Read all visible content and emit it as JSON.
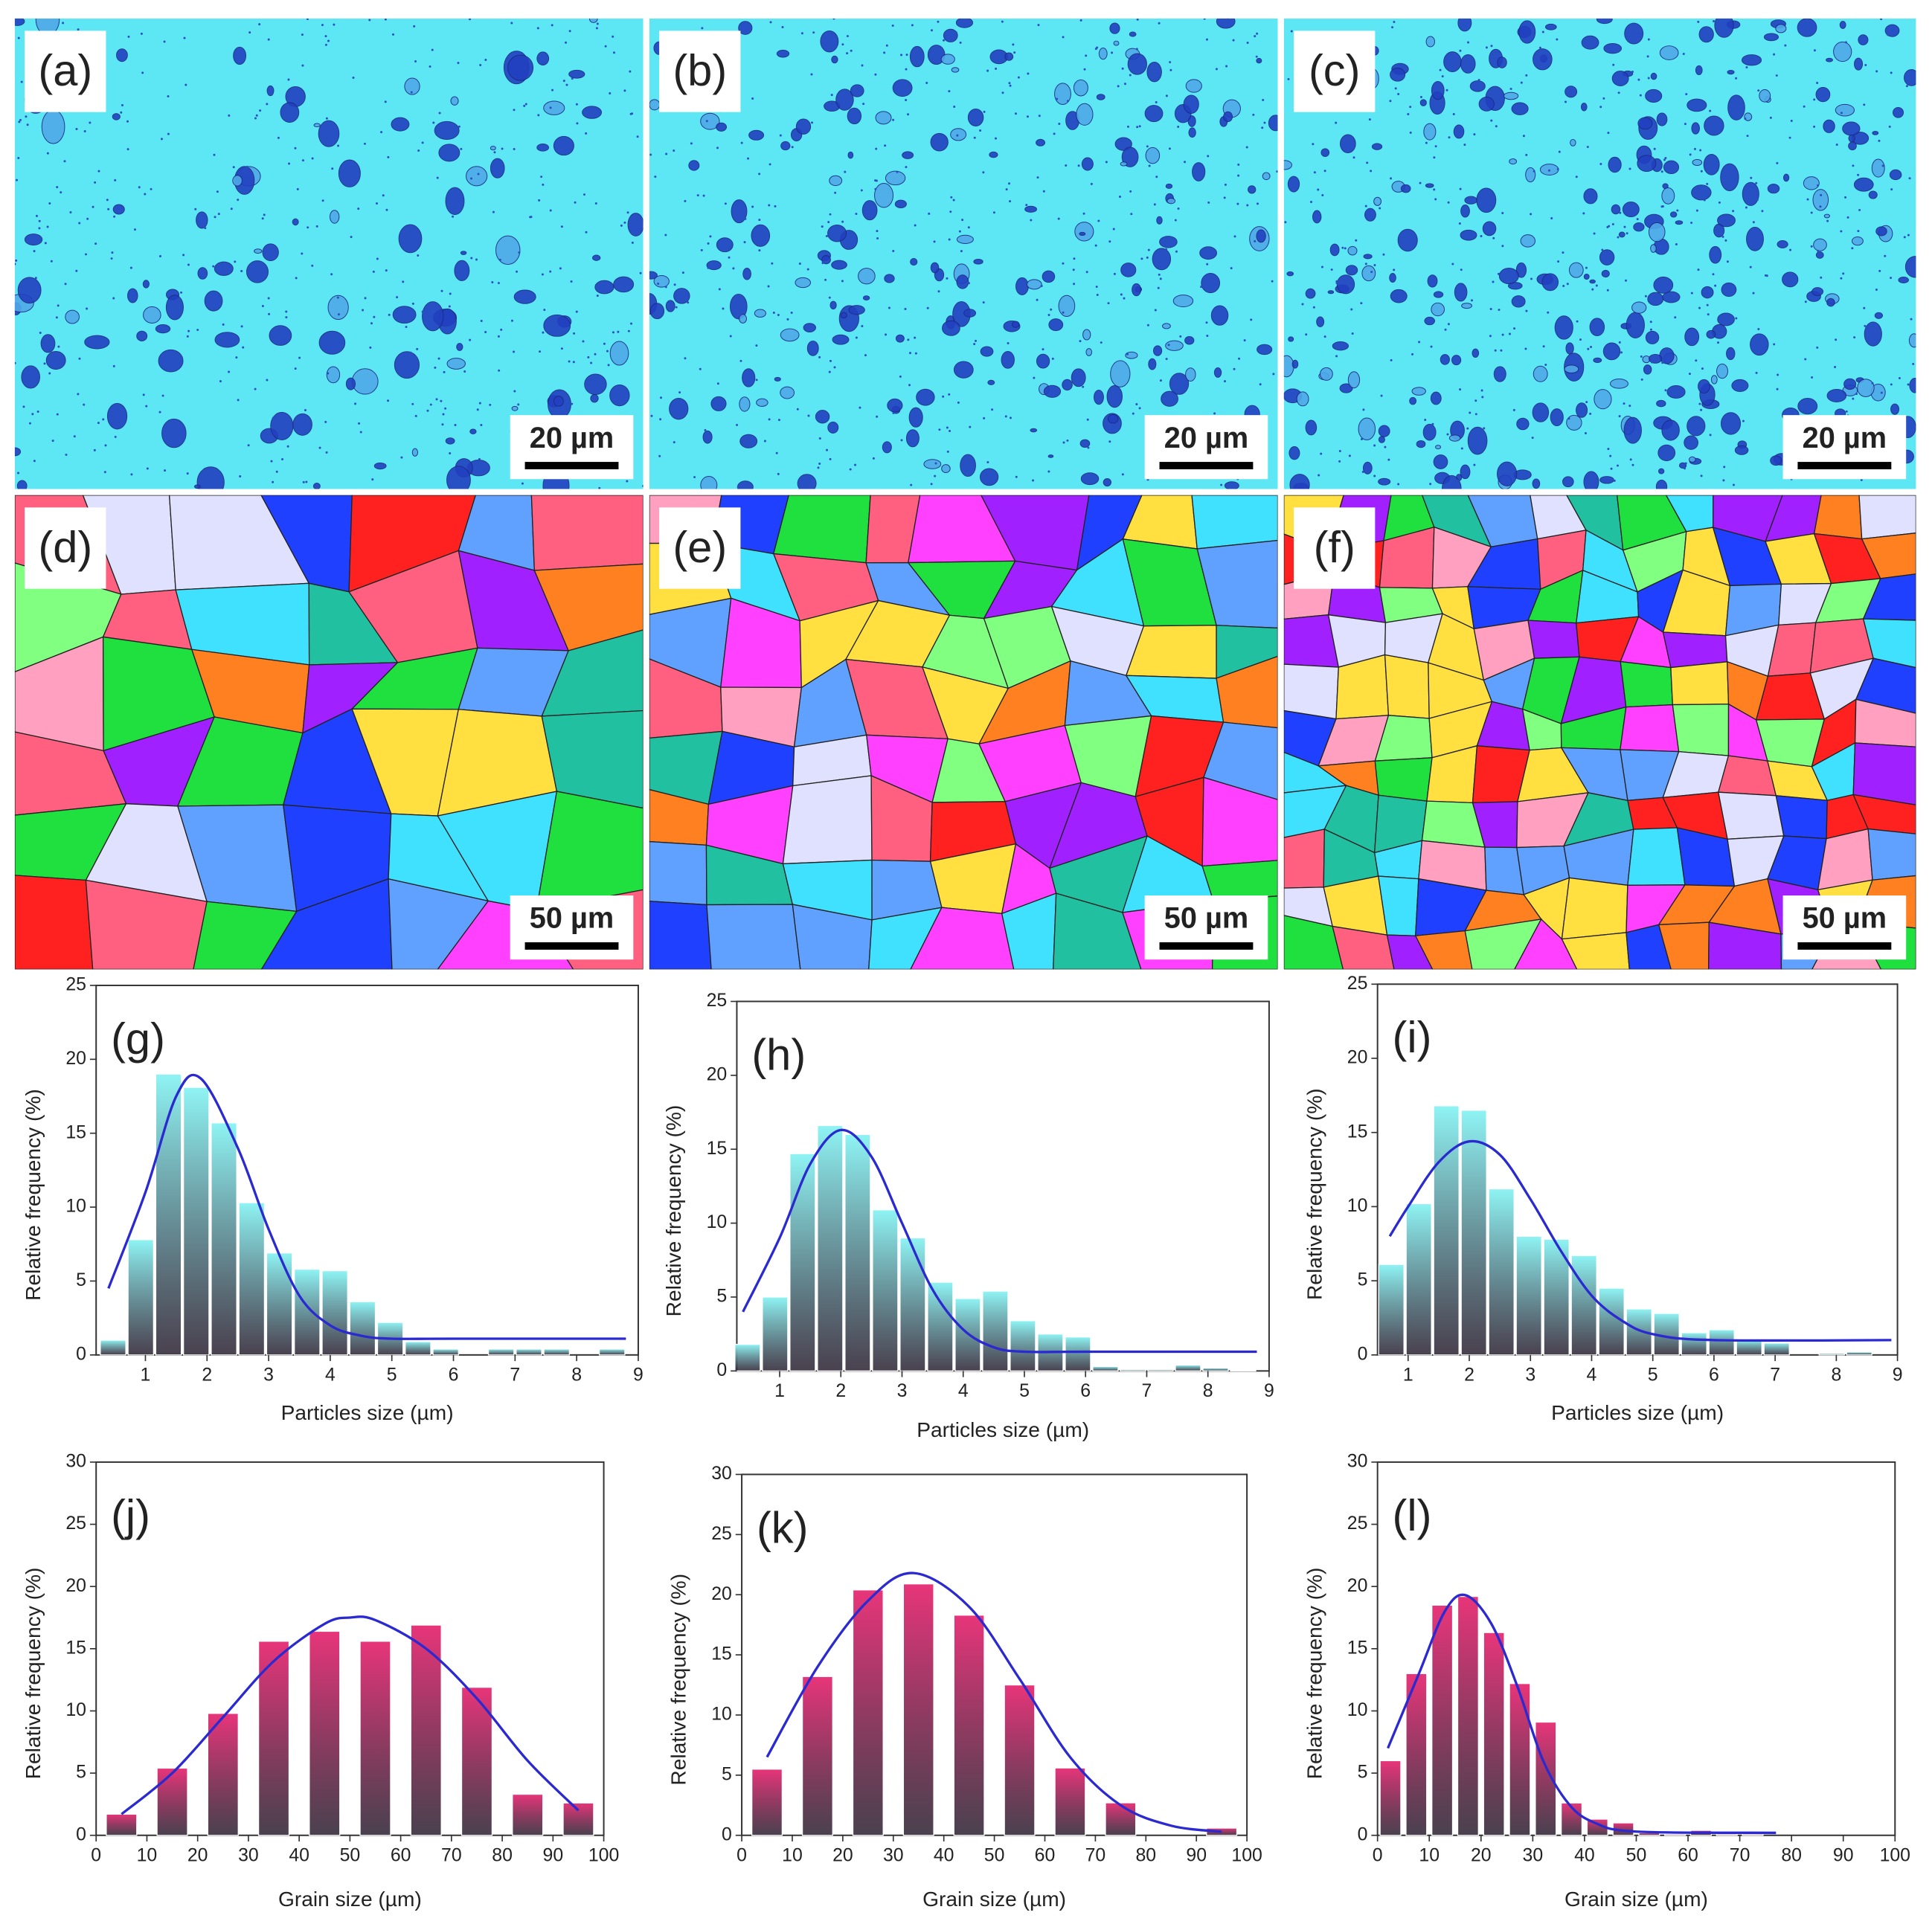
{
  "panels": [
    {
      "label": "(a)",
      "scale_bar": "20 µm"
    },
    {
      "label": "(b)",
      "scale_bar": "20 µm"
    },
    {
      "label": "(c)",
      "scale_bar": "20 µm"
    },
    {
      "label": "(d)",
      "scale_bar": "50 µm"
    },
    {
      "label": "(e)",
      "scale_bar": "50 µm"
    },
    {
      "label": "(f)",
      "scale_bar": "50 µm"
    }
  ],
  "chart_data": [
    {
      "type": "histogram",
      "label": "(g)",
      "xlabel": "Particles size (µm)",
      "ylabel": "Relative frequency (%)",
      "color": "#8ff4f4",
      "bins": [
        0.25,
        0.7,
        1.15,
        1.6,
        2.05,
        2.5,
        2.95,
        3.4,
        3.85,
        4.3,
        4.75,
        5.2,
        5.65,
        6.1,
        6.55,
        7.0,
        7.45,
        7.9,
        8.35,
        8.8
      ],
      "values": [
        1,
        7.8,
        19,
        18.1,
        15.7,
        10.3,
        6.9,
        5.8,
        5.7,
        3.6,
        2.2,
        0.9,
        0.4,
        0,
        0.4,
        0.4,
        0.4,
        0,
        0.4
      ],
      "fit": {
        "color": "#2a2ad0",
        "x": [
          0.4,
          1,
          1.5,
          1.9,
          2.5,
          3,
          3.5,
          4,
          4.5,
          5,
          6,
          8.8
        ],
        "y": [
          4.5,
          11,
          17.5,
          18.7,
          14,
          8.5,
          4,
          2,
          1.3,
          1.1,
          1.1,
          1.1
        ]
      },
      "xlim": [
        0.2,
        9
      ],
      "xticks": [
        1,
        2,
        3,
        4,
        5,
        6,
        7,
        8,
        9
      ],
      "ylim": [
        0,
        25
      ],
      "yticks": [
        0,
        5,
        10,
        15,
        20,
        25
      ]
    },
    {
      "type": "histogram",
      "label": "(h)",
      "xlabel": "Particles size (µm)",
      "ylabel": "Relative frequency (%)",
      "color": "#8ff4f4",
      "bins": [
        0.25,
        0.7,
        1.15,
        1.6,
        2.05,
        2.5,
        2.95,
        3.4,
        3.85,
        4.3,
        4.75,
        5.2,
        5.65,
        6.1,
        6.55,
        7.0,
        7.45,
        7.9,
        8.35,
        8.8
      ],
      "values": [
        1.8,
        5,
        14.7,
        16.6,
        16,
        10.9,
        9,
        6,
        4.9,
        5.4,
        3.4,
        2.5,
        2.3,
        0.3,
        0.1,
        0.1,
        0.4,
        0.2,
        0.05
      ],
      "fit": {
        "color": "#2a2ad0",
        "x": [
          0.4,
          1,
          1.5,
          2,
          2.5,
          3,
          3.5,
          4,
          4.5,
          5,
          6,
          8.8
        ],
        "y": [
          4,
          9,
          14,
          16.3,
          14.5,
          10,
          5.5,
          2.8,
          1.6,
          1.3,
          1.3,
          1.3
        ]
      },
      "xlim": [
        0.3,
        9
      ],
      "xticks": [
        1,
        2,
        3,
        4,
        5,
        6,
        7,
        8,
        9
      ],
      "ylim": [
        0,
        25
      ],
      "yticks": [
        0,
        5,
        10,
        15,
        20,
        25
      ]
    },
    {
      "type": "histogram",
      "label": "(i)",
      "xlabel": "Particles size (µm)",
      "ylabel": "Relative frequency (%)",
      "color": "#8ff4f4",
      "bins": [
        0.5,
        0.95,
        1.4,
        1.85,
        2.3,
        2.75,
        3.2,
        3.65,
        4.1,
        4.55,
        5.0,
        5.45,
        5.9,
        6.35,
        6.8,
        7.25,
        7.7,
        8.15,
        8.6
      ],
      "values": [
        6.1,
        10.2,
        16.8,
        16.5,
        11.2,
        8,
        7.8,
        6.7,
        4.5,
        3.1,
        2.8,
        1.5,
        1.7,
        1,
        0.8,
        0,
        0.1,
        0.2
      ],
      "fit": {
        "color": "#2a2ad0",
        "x": [
          0.7,
          1,
          1.5,
          2,
          2.5,
          3,
          3.5,
          4,
          4.5,
          5,
          6,
          8.9
        ],
        "y": [
          8,
          10,
          13,
          14.4,
          13.5,
          10.5,
          7,
          4,
          2.3,
          1.4,
          1,
          1
        ]
      },
      "xlim": [
        0.5,
        9
      ],
      "xticks": [
        1,
        2,
        3,
        4,
        5,
        6,
        7,
        8,
        9
      ],
      "ylim": [
        0,
        25
      ],
      "yticks": [
        0,
        5,
        10,
        15,
        20,
        25
      ]
    },
    {
      "type": "histogram",
      "label": "(j)",
      "xlabel": "Grain size (µm)",
      "ylabel": "Relative frequency (%)",
      "color": "#e8357a",
      "bins": [
        0,
        10,
        20,
        30,
        40,
        50,
        60,
        70,
        80,
        90,
        100
      ],
      "values": [
        1.7,
        5.4,
        9.8,
        15.6,
        16.4,
        15.6,
        16.9,
        11.9,
        3.3,
        2.6
      ],
      "fit": {
        "color": "#2a2ad0",
        "x": [
          5,
          15,
          25,
          35,
          45,
          50,
          55,
          65,
          75,
          85,
          95
        ],
        "y": [
          1.7,
          5,
          9.5,
          14,
          17,
          17.5,
          17.3,
          15,
          11,
          6,
          2
        ]
      },
      "xlim": [
        0,
        100
      ],
      "xticks": [
        0,
        10,
        20,
        30,
        40,
        50,
        60,
        70,
        80,
        90,
        100
      ],
      "ylim": [
        0,
        30
      ],
      "yticks": [
        0,
        5,
        10,
        15,
        20,
        25,
        30
      ]
    },
    {
      "type": "histogram",
      "label": "(k)",
      "xlabel": "Grain size (µm)",
      "ylabel": "Relative frequency (%)",
      "color": "#e8357a",
      "bins": [
        0,
        10,
        20,
        30,
        40,
        50,
        60,
        70,
        80,
        90,
        100
      ],
      "values": [
        5.5,
        13.2,
        20.4,
        20.9,
        18.3,
        12.5,
        5.6,
        2.7,
        0,
        0.6
      ],
      "fit": {
        "color": "#2a2ad0",
        "x": [
          5,
          15,
          25,
          34,
          45,
          55,
          65,
          75,
          85,
          95
        ],
        "y": [
          6.5,
          14,
          19.5,
          21.8,
          19,
          13,
          6.5,
          2.5,
          0.8,
          0.3
        ]
      },
      "xlim": [
        0,
        100
      ],
      "xticks": [
        0,
        10,
        20,
        30,
        40,
        50,
        60,
        70,
        80,
        90,
        100
      ],
      "ylim": [
        0,
        30
      ],
      "yticks": [
        0,
        5,
        10,
        15,
        20,
        25,
        30
      ]
    },
    {
      "type": "histogram",
      "label": "(l)",
      "xlabel": "Grain size (µm)",
      "ylabel": "Relative frequency (%)",
      "color": "#e8357a",
      "bins": [
        0,
        5,
        10,
        15,
        20,
        25,
        30,
        35,
        40,
        45,
        50,
        55,
        60,
        65,
        70,
        75
      ],
      "values": [
        6,
        13,
        18.5,
        19.2,
        16.3,
        12.2,
        9.1,
        2.6,
        1.3,
        1,
        0.2,
        0.1,
        0.4,
        0.1,
        0.1
      ],
      "fit": {
        "color": "#2a2ad0",
        "x": [
          2,
          8,
          13,
          17,
          22,
          27,
          32,
          37,
          42,
          50,
          77
        ],
        "y": [
          7,
          13,
          18,
          19.3,
          17,
          12,
          6,
          2.5,
          1,
          0.3,
          0.2
        ]
      },
      "xlim": [
        0,
        100
      ],
      "xticks": [
        0,
        10,
        20,
        30,
        40,
        50,
        60,
        70,
        80,
        90,
        100
      ],
      "ylim": [
        0,
        30
      ],
      "yticks": [
        0,
        5,
        10,
        15,
        20,
        25,
        30
      ]
    }
  ]
}
